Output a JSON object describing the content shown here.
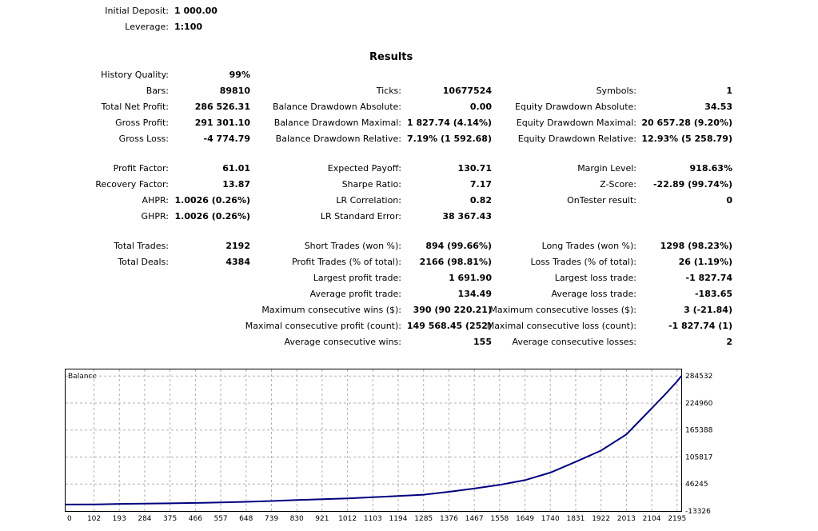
{
  "header": {
    "initial_deposit_label": "Initial Deposit:",
    "initial_deposit_value": "1 000.00",
    "leverage_label": "Leverage:",
    "leverage_value": "1:100"
  },
  "results": {
    "title": "Results",
    "history_quality_label": "History Quality:",
    "history_quality_value": "99%",
    "bars_label": "Bars:",
    "bars_value": "89810",
    "total_net_profit_label": "Total Net Profit:",
    "total_net_profit_value": "286 526.31",
    "gross_profit_label": "Gross Profit:",
    "gross_profit_value": "291 301.10",
    "gross_loss_label": "Gross Loss:",
    "gross_loss_value": "-4 774.79",
    "ticks_label": "Ticks:",
    "ticks_value": "10677524",
    "bal_dd_abs_label": "Balance Drawdown Absolute:",
    "bal_dd_abs_value": "0.00",
    "bal_dd_max_label": "Balance Drawdown Maximal:",
    "bal_dd_max_value": "1 827.74 (4.14%)",
    "bal_dd_rel_label": "Balance Drawdown Relative:",
    "bal_dd_rel_value": "7.19% (1 592.68)",
    "symbols_label": "Symbols:",
    "symbols_value": "1",
    "eq_dd_abs_label": "Equity Drawdown Absolute:",
    "eq_dd_abs_value": "34.53",
    "eq_dd_max_label": "Equity Drawdown Maximal:",
    "eq_dd_max_value": "20 657.28 (9.20%)",
    "eq_dd_rel_label": "Equity Drawdown Relative:",
    "eq_dd_rel_value": "12.93% (5 258.79)",
    "profit_factor_label": "Profit Factor:",
    "profit_factor_value": "61.01",
    "recovery_factor_label": "Recovery Factor:",
    "recovery_factor_value": "13.87",
    "ahpr_label": "AHPR:",
    "ahpr_value": "1.0026 (0.26%)",
    "ghpr_label": "GHPR:",
    "ghpr_value": "1.0026 (0.26%)",
    "expected_payoff_label": "Expected Payoff:",
    "expected_payoff_value": "130.71",
    "sharpe_label": "Sharpe Ratio:",
    "sharpe_value": "7.17",
    "lr_corr_label": "LR Correlation:",
    "lr_corr_value": "0.82",
    "lr_se_label": "LR Standard Error:",
    "lr_se_value": "38 367.43",
    "margin_level_label": "Margin Level:",
    "margin_level_value": "918.63%",
    "zscore_label": "Z-Score:",
    "zscore_value": "-22.89 (99.74%)",
    "ontester_label": "OnTester result:",
    "ontester_value": "0",
    "total_trades_label": "Total Trades:",
    "total_trades_value": "2192",
    "total_deals_label": "Total Deals:",
    "total_deals_value": "4384",
    "short_trades_label": "Short Trades (won %):",
    "short_trades_value": "894 (99.66%)",
    "profit_trades_label": "Profit Trades (% of total):",
    "profit_trades_value": "2166 (98.81%)",
    "largest_profit_label": "Largest profit trade:",
    "largest_profit_value": "1 691.90",
    "avg_profit_label": "Average profit trade:",
    "avg_profit_value": "134.49",
    "max_cons_wins_label": "Maximum consecutive wins ($):",
    "max_cons_wins_value": "390 (90 220.21)",
    "maximal_cons_profit_label": "Maximal consecutive profit (count):",
    "maximal_cons_profit_value": "149 568.45 (252)",
    "avg_cons_wins_label": "Average consecutive wins:",
    "avg_cons_wins_value": "155",
    "long_trades_label": "Long Trades (won %):",
    "long_trades_value": "1298 (98.23%)",
    "loss_trades_label": "Loss Trades (% of total):",
    "loss_trades_value": "26 (1.19%)",
    "largest_loss_label": "Largest loss trade:",
    "largest_loss_value": "-1 827.74",
    "avg_loss_label": "Average loss trade:",
    "avg_loss_value": "-183.65",
    "max_cons_losses_label": "Maximum consecutive losses ($):",
    "max_cons_losses_value": "3 (-21.84)",
    "maximal_cons_loss_label": "Maximal consecutive loss (count):",
    "maximal_cons_loss_value": "-1 827.74 (1)",
    "avg_cons_losses_label": "Average consecutive losses:",
    "avg_cons_losses_value": "2"
  },
  "chart_data": {
    "type": "line",
    "title": "Balance",
    "xlabel": "",
    "ylabel": "",
    "x_ticks": [
      "0",
      "102",
      "193",
      "284",
      "375",
      "466",
      "557",
      "648",
      "739",
      "830",
      "921",
      "1012",
      "1103",
      "1194",
      "1285",
      "1376",
      "1467",
      "1558",
      "1649",
      "1740",
      "1831",
      "1922",
      "2013",
      "2104",
      "2195"
    ],
    "y_ticks": [
      "284532",
      "224960",
      "165388",
      "105817",
      "46245",
      "-13326"
    ],
    "xlim": [
      0,
      2210
    ],
    "ylim": [
      -13326,
      299000
    ],
    "grid": true,
    "line_color": "#000080",
    "series": [
      {
        "x": [
          0,
          102,
          193,
          284,
          375,
          466,
          557,
          648,
          739,
          830,
          921,
          1012,
          1103,
          1194,
          1285,
          1376,
          1467,
          1558,
          1649,
          1740,
          1831,
          1922,
          2013,
          2104,
          2150,
          2195,
          2210
        ],
        "values": [
          1000,
          1200,
          2300,
          3100,
          3700,
          4500,
          5600,
          6900,
          8800,
          10800,
          12800,
          14600,
          17000,
          19800,
          22600,
          29000,
          36200,
          44400,
          54700,
          71300,
          95300,
          120000,
          155800,
          213500,
          242700,
          272700,
          284532
        ]
      }
    ]
  }
}
